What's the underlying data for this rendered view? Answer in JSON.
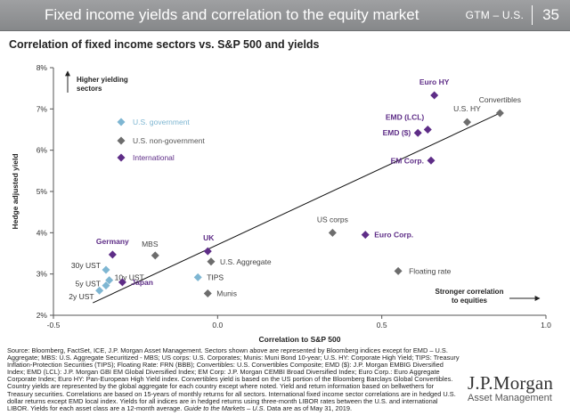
{
  "header": {
    "title": "Fixed income yields and correlation to the equity market",
    "section": "GTM – U.S.",
    "page": "35"
  },
  "colors": {
    "header_bg": "#929496",
    "light_blue": "#7eb6d2",
    "gray": "#6d6d6d",
    "purple": "#5e2d87"
  },
  "chart_data": {
    "type": "scatter",
    "title": "Correlation of fixed income sectors vs. S&P 500 and yields",
    "xlabel": "Correlation to S&P 500",
    "ylabel": "Hedge adjusted yield",
    "xlim": [
      -0.5,
      1.0
    ],
    "ylim": [
      2,
      8
    ],
    "x_ticks": [
      "-0.5",
      "0.0",
      "0.5",
      "1.0"
    ],
    "y_ticks": [
      "2%",
      "3%",
      "4%",
      "5%",
      "6%",
      "7%",
      "8%"
    ],
    "grid": false,
    "legend": {
      "placement": "top-left",
      "entries": [
        {
          "label": "U.S. government",
          "color": "#7eb6d2"
        },
        {
          "label": "U.S. non-government",
          "color": "#6d6d6d"
        },
        {
          "label": "International",
          "color": "#5e2d87"
        }
      ]
    },
    "annotations": {
      "higher": [
        "Higher yielding",
        "sectors"
      ],
      "stronger": [
        "Stronger correlation",
        "to equities"
      ]
    },
    "trendline": {
      "x": [
        -0.38,
        0.86
      ],
      "y": [
        2.3,
        6.9
      ]
    },
    "points": [
      {
        "label": "30y UST",
        "x": -0.34,
        "y": 3.1,
        "group": "gov",
        "bold": false
      },
      {
        "label": "10y UST",
        "x": -0.33,
        "y": 2.85,
        "group": "gov",
        "bold": false
      },
      {
        "label": "5y UST",
        "x": -0.34,
        "y": 2.72,
        "group": "gov",
        "bold": false
      },
      {
        "label": "2y UST",
        "x": -0.36,
        "y": 2.6,
        "group": "gov",
        "bold": false
      },
      {
        "label": "TIPS",
        "x": -0.06,
        "y": 2.92,
        "group": "gov",
        "bold": false
      },
      {
        "label": "Japan",
        "x": -0.29,
        "y": 2.8,
        "group": "intl",
        "bold": true
      },
      {
        "label": "Germany",
        "x": -0.32,
        "y": 3.47,
        "group": "intl",
        "bold": true
      },
      {
        "label": "MBS",
        "x": -0.19,
        "y": 3.45,
        "group": "nongov",
        "bold": false
      },
      {
        "label": "UK",
        "x": -0.03,
        "y": 3.55,
        "group": "intl",
        "bold": true
      },
      {
        "label": "U.S. Aggregate",
        "x": -0.02,
        "y": 3.3,
        "group": "nongov",
        "bold": false
      },
      {
        "label": "Munis",
        "x": -0.03,
        "y": 2.53,
        "group": "nongov",
        "bold": false
      },
      {
        "label": "US corps",
        "x": 0.35,
        "y": 4.0,
        "group": "nongov",
        "bold": false
      },
      {
        "label": "Euro Corp.",
        "x": 0.45,
        "y": 3.95,
        "group": "intl",
        "bold": true
      },
      {
        "label": "Floating rate",
        "x": 0.55,
        "y": 3.07,
        "group": "nongov",
        "bold": false
      },
      {
        "label": "EM Corp.",
        "x": 0.65,
        "y": 5.75,
        "group": "intl",
        "bold": true
      },
      {
        "label": "EMD ($)",
        "x": 0.61,
        "y": 6.42,
        "group": "intl",
        "bold": true
      },
      {
        "label": "EMD (LCL)",
        "x": 0.64,
        "y": 6.5,
        "group": "intl",
        "bold": true
      },
      {
        "label": "Euro HY",
        "x": 0.66,
        "y": 7.33,
        "group": "intl",
        "bold": true
      },
      {
        "label": "U.S. HY",
        "x": 0.76,
        "y": 6.68,
        "group": "nongov",
        "bold": false
      },
      {
        "label": "Convertibles",
        "x": 0.86,
        "y": 6.9,
        "group": "nongov",
        "bold": false
      }
    ]
  },
  "footer": {
    "source": "Source: Bloomberg, FactSet, ICE, J.P. Morgan Asset Management. Sectors shown above are represented by Bloomberg indices except for EMD – U.S. Aggregate; MBS: U.S. Aggregate Securitized - MBS; US corps: U.S. Corporates; Munis: Muni Bond 10-year; U.S. HY: Corporate High Yield; TIPS: Treasury Inflation-Protection Securities (TIPS); Floating Rate: FRN (BBB); Convertibles: U.S. Convertibles Composite; EMD ($): J.P. Morgan EMBIG Diversified Index; EMD (LCL): J.P. Morgan GBI EM Global Diversified Index; EM Corp: J.P. Morgan CEMBI Broad Diversified Index; Euro Corp.: Euro Aggregate Corporate Index; Euro HY: Pan-European High Yield index. Convertibles yield is based on the US portion of the Bloomberg Barclays Global Convertibles. Country yields are represented by the global aggregate for each country except where noted. Yield and return information based on bellwethers for Treasury securities. Correlations are based on 15-years of monthly returns for all sectors. International fixed income sector correlations are in hedged U.S. dollar returns except EMD local index. Yields for all indices are in hedged returns using three-month LIBOR rates between the U.S. and international LIBOR. Yields for each asset class are a 12-month average.",
    "gtm_italic": "Guide to the Markets – U.S.",
    "asof": "Data are as of May 31, 2019.",
    "logo_line1": "J.P.Morgan",
    "logo_line2": "Asset Management"
  }
}
